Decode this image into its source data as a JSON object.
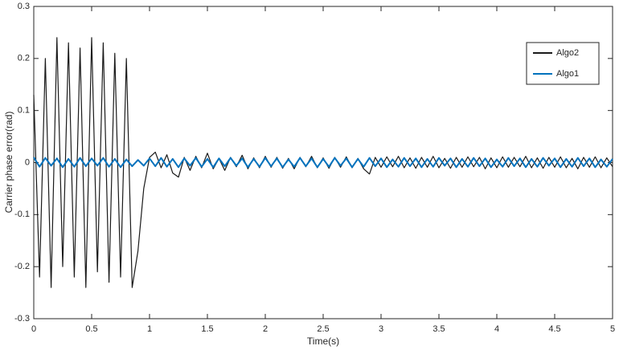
{
  "chart_data": {
    "type": "line",
    "xlabel": "Time(s)",
    "ylabel": "Carrier phase error(rad)",
    "xlim": [
      0,
      5
    ],
    "ylim": [
      -0.3,
      0.3
    ],
    "xticks": [
      0,
      0.5,
      1,
      1.5,
      2,
      2.5,
      3,
      3.5,
      4,
      4.5,
      5
    ],
    "yticks": [
      -0.3,
      -0.2,
      -0.1,
      0,
      0.1,
      0.2,
      0.3
    ],
    "legend_position": "upper right",
    "x": [
      0,
      0.05,
      0.1,
      0.15,
      0.2,
      0.25,
      0.3,
      0.35,
      0.4,
      0.45,
      0.5,
      0.55,
      0.6,
      0.65,
      0.7,
      0.75,
      0.8,
      0.85,
      0.9,
      0.95,
      1,
      1.05,
      1.1,
      1.15,
      1.2,
      1.25,
      1.3,
      1.35,
      1.4,
      1.45,
      1.5,
      1.55,
      1.6,
      1.65,
      1.7,
      1.75,
      1.8,
      1.85,
      1.9,
      1.95,
      2,
      2.05,
      2.1,
      2.15,
      2.2,
      2.25,
      2.3,
      2.35,
      2.4,
      2.45,
      2.5,
      2.55,
      2.6,
      2.65,
      2.7,
      2.75,
      2.8,
      2.85,
      2.9,
      2.95,
      3,
      3.05,
      3.1,
      3.15,
      3.2,
      3.25,
      3.3,
      3.35,
      3.4,
      3.45,
      3.5,
      3.55,
      3.6,
      3.65,
      3.7,
      3.75,
      3.8,
      3.85,
      3.9,
      3.95,
      4,
      4.05,
      4.1,
      4.15,
      4.2,
      4.25,
      4.3,
      4.35,
      4.4,
      4.45,
      4.5,
      4.55,
      4.6,
      4.65,
      4.7,
      4.75,
      4.8,
      4.85,
      4.9,
      4.95,
      5
    ],
    "series": [
      {
        "name": "Algo2",
        "color": "#1a1a1a",
        "values": [
          0.13,
          -0.22,
          0.2,
          -0.24,
          0.24,
          -0.2,
          0.23,
          -0.22,
          0.22,
          -0.24,
          0.24,
          -0.21,
          0.23,
          -0.23,
          0.21,
          -0.22,
          0.2,
          -0.24,
          -0.17,
          -0.05,
          0.01,
          0.02,
          -0.01,
          0.015,
          -0.02,
          -0.028,
          0.01,
          -0.015,
          0.012,
          -0.01,
          0.018,
          -0.012,
          0.008,
          -0.015,
          0.01,
          -0.008,
          0.014,
          -0.012,
          0.009,
          -0.01,
          0.012,
          -0.009,
          0.01,
          -0.011,
          0.008,
          -0.012,
          0.01,
          -0.008,
          0.012,
          -0.01,
          0.009,
          -0.011,
          0.01,
          -0.009,
          0.011,
          -0.01,
          0.008,
          -0.012,
          -0.022,
          0.01,
          -0.009,
          0.011,
          -0.008,
          0.012,
          -0.01,
          0.009,
          -0.011,
          0.01,
          -0.009,
          0.012,
          -0.01,
          0.008,
          -0.011,
          0.01,
          -0.009,
          0.011,
          -0.008,
          0.01,
          -0.012,
          0.009,
          -0.01,
          0.011,
          -0.009,
          0.01,
          -0.008,
          0.012,
          -0.01,
          0.009,
          -0.011,
          0.01,
          -0.009,
          0.011,
          -0.01,
          0.008,
          -0.012,
          0.01,
          -0.009,
          0.011,
          -0.01,
          0.009,
          -0.008
        ]
      },
      {
        "name": "Algo1",
        "color": "#0072bd",
        "values": [
          0.01,
          -0.008,
          0.009,
          -0.006,
          0.008,
          -0.009,
          0.007,
          -0.008,
          0.009,
          -0.007,
          0.008,
          -0.006,
          0.009,
          -0.008,
          0.007,
          -0.009,
          0.006,
          -0.007,
          0.005,
          -0.006,
          0.008,
          -0.007,
          0.009,
          -0.008,
          0.007,
          -0.009,
          0.008,
          -0.006,
          0.009,
          -0.008,
          0.007,
          -0.009,
          0.008,
          -0.007,
          0.009,
          -0.006,
          0.008,
          -0.009,
          0.007,
          -0.008,
          0.009,
          -0.007,
          0.008,
          -0.009,
          0.006,
          -0.008,
          0.009,
          -0.007,
          0.008,
          -0.009,
          0.007,
          -0.008,
          0.009,
          -0.006,
          0.008,
          -0.009,
          0.007,
          -0.008,
          0.009,
          -0.007,
          0.008,
          -0.009,
          0.006,
          -0.008,
          0.009,
          -0.007,
          0.008,
          -0.009,
          0.007,
          -0.008,
          0.009,
          -0.006,
          0.008,
          -0.009,
          0.007,
          -0.008,
          0.009,
          -0.007,
          0.008,
          -0.009,
          0.006,
          -0.008,
          0.009,
          -0.007,
          0.008,
          -0.009,
          0.007,
          -0.008,
          0.009,
          -0.006,
          0.008,
          -0.009,
          0.007,
          -0.008,
          0.009,
          -0.007,
          0.008,
          -0.009,
          0.006,
          -0.008,
          0.007
        ]
      }
    ]
  }
}
